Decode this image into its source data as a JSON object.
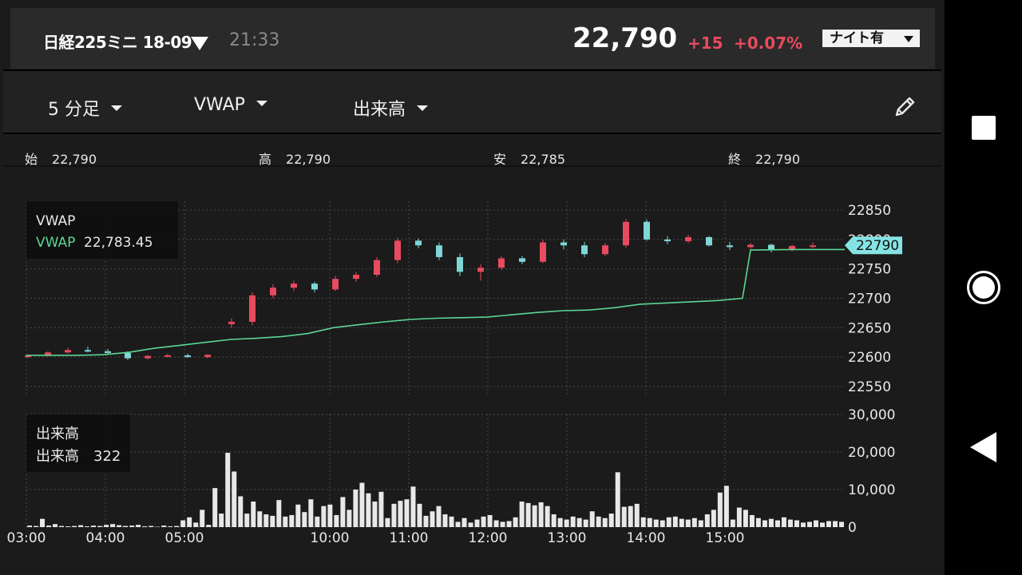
{
  "header": {
    "symbol": "日経225ミニ 18-09",
    "time": "21:33",
    "price": "22,790",
    "change": "+15",
    "change_pct": "+0.07%",
    "session_toggle": "ナイト有"
  },
  "toolbar": {
    "interval": "5 分足",
    "indicator": "VWAP",
    "sub_indicator": "出来高",
    "edit_icon": "pencil-icon"
  },
  "ohlc": {
    "open_label": "始",
    "open": "22,790",
    "high_label": "高",
    "high": "22,790",
    "low_label": "安",
    "low": "22,785",
    "close_label": "終",
    "close": "22,790"
  },
  "legend": {
    "main_title": "VWAP",
    "main_series": "VWAP",
    "main_value": "22,783.45",
    "vol_title": "出来高",
    "vol_series": "出来高",
    "vol_value": "322"
  },
  "colors": {
    "up": "#e84a5f",
    "down": "#7fd6d6",
    "vwap": "#5cd694",
    "price_tag": "#86e3e3",
    "volume": "#e8e8e8"
  },
  "chart_data": [
    {
      "type": "candlestick",
      "title": "",
      "x_ticks": [
        "03:00",
        "04:00",
        "05:00",
        "10:00",
        "11:00",
        "12:00",
        "13:00",
        "14:00",
        "15:00"
      ],
      "y_ticks": [
        22850,
        22800,
        22750,
        22700,
        22650,
        22600,
        22550
      ],
      "ylim": [
        22535,
        22865
      ],
      "last_price_label": "22790",
      "grid": true,
      "series": [
        {
          "name": "VWAP",
          "type": "line",
          "values": [
            22603,
            22603,
            22603,
            22604,
            22608,
            22615,
            22620,
            22625,
            22630,
            22632,
            22635,
            22640,
            22650,
            22655,
            22660,
            22664,
            22666,
            22667,
            22668,
            22672,
            22676,
            22679,
            22680,
            22684,
            22690,
            22692,
            22694,
            22696,
            22700,
            22782,
            22783,
            22783,
            22783
          ]
        }
      ],
      "candles": [
        {
          "o": 22600,
          "h": 22604,
          "l": 22598,
          "c": 22603
        },
        {
          "o": 22603,
          "h": 22610,
          "l": 22601,
          "c": 22608
        },
        {
          "o": 22608,
          "h": 22616,
          "l": 22606,
          "c": 22612
        },
        {
          "o": 22612,
          "h": 22618,
          "l": 22608,
          "c": 22610
        },
        {
          "o": 22610,
          "h": 22614,
          "l": 22606,
          "c": 22607
        },
        {
          "o": 22607,
          "h": 22610,
          "l": 22595,
          "c": 22598
        },
        {
          "o": 22598,
          "h": 22604,
          "l": 22596,
          "c": 22602
        },
        {
          "o": 22602,
          "h": 22606,
          "l": 22600,
          "c": 22603
        },
        {
          "o": 22603,
          "h": 22606,
          "l": 22599,
          "c": 22600
        },
        {
          "o": 22600,
          "h": 22605,
          "l": 22598,
          "c": 22604
        },
        {
          "o": 22656,
          "h": 22666,
          "l": 22650,
          "c": 22660
        },
        {
          "o": 22660,
          "h": 22710,
          "l": 22654,
          "c": 22705
        },
        {
          "o": 22705,
          "h": 22724,
          "l": 22700,
          "c": 22718
        },
        {
          "o": 22718,
          "h": 22730,
          "l": 22712,
          "c": 22725
        },
        {
          "o": 22725,
          "h": 22728,
          "l": 22710,
          "c": 22715
        },
        {
          "o": 22715,
          "h": 22738,
          "l": 22712,
          "c": 22733
        },
        {
          "o": 22733,
          "h": 22745,
          "l": 22728,
          "c": 22740
        },
        {
          "o": 22740,
          "h": 22770,
          "l": 22736,
          "c": 22765
        },
        {
          "o": 22765,
          "h": 22803,
          "l": 22760,
          "c": 22798
        },
        {
          "o": 22798,
          "h": 22802,
          "l": 22785,
          "c": 22790
        },
        {
          "o": 22790,
          "h": 22795,
          "l": 22765,
          "c": 22770
        },
        {
          "o": 22770,
          "h": 22776,
          "l": 22738,
          "c": 22745
        },
        {
          "o": 22745,
          "h": 22758,
          "l": 22730,
          "c": 22752
        },
        {
          "o": 22752,
          "h": 22772,
          "l": 22748,
          "c": 22768
        },
        {
          "o": 22768,
          "h": 22772,
          "l": 22758,
          "c": 22762
        },
        {
          "o": 22762,
          "h": 22800,
          "l": 22760,
          "c": 22795
        },
        {
          "o": 22795,
          "h": 22800,
          "l": 22783,
          "c": 22790
        },
        {
          "o": 22790,
          "h": 22796,
          "l": 22770,
          "c": 22775
        },
        {
          "o": 22775,
          "h": 22794,
          "l": 22772,
          "c": 22790
        },
        {
          "o": 22790,
          "h": 22835,
          "l": 22786,
          "c": 22830
        },
        {
          "o": 22830,
          "h": 22834,
          "l": 22798,
          "c": 22800
        },
        {
          "o": 22800,
          "h": 22806,
          "l": 22792,
          "c": 22797
        },
        {
          "o": 22797,
          "h": 22808,
          "l": 22794,
          "c": 22804
        },
        {
          "o": 22804,
          "h": 22806,
          "l": 22788,
          "c": 22790
        },
        {
          "o": 22790,
          "h": 22796,
          "l": 22782,
          "c": 22787
        },
        {
          "o": 22787,
          "h": 22794,
          "l": 22784,
          "c": 22791
        },
        {
          "o": 22791,
          "h": 22793,
          "l": 22778,
          "c": 22782
        },
        {
          "o": 22782,
          "h": 22791,
          "l": 22780,
          "c": 22789
        },
        {
          "o": 22789,
          "h": 22795,
          "l": 22785,
          "c": 22790
        }
      ]
    },
    {
      "type": "bar",
      "title": "",
      "x_ticks": [
        "03:00",
        "04:00",
        "05:00",
        "10:00",
        "11:00",
        "12:00",
        "13:00",
        "14:00",
        "15:00"
      ],
      "y_ticks": [
        30000,
        20000,
        10000,
        0
      ],
      "ylim": [
        0,
        30000
      ],
      "values": [
        400,
        300,
        2200,
        400,
        800,
        300,
        200,
        300,
        500,
        200,
        400,
        300,
        600,
        800,
        500,
        300,
        400,
        600,
        200,
        300,
        100,
        400,
        200,
        300,
        1800,
        2600,
        1200,
        4600,
        600,
        10400,
        3600,
        19800,
        14800,
        8200,
        3600,
        6800,
        4200,
        3400,
        3000,
        7200,
        2800,
        3200,
        6000,
        4000,
        7400,
        2800,
        5600,
        6000,
        3200,
        8000,
        4600,
        10000,
        11800,
        9000,
        6800,
        9400,
        2400,
        6200,
        7000,
        7400,
        10800,
        6200,
        3000,
        4200,
        5600,
        3400,
        2800,
        1400,
        2400,
        1200,
        2000,
        2800,
        3200,
        1800,
        1400,
        1600,
        2600,
        6800,
        6400,
        5800,
        6600,
        5600,
        3400,
        2400,
        2000,
        2800,
        2400,
        2000,
        4200,
        2800,
        2400,
        3600,
        14600,
        5400,
        5600,
        6200,
        2600,
        2400,
        2000,
        1800,
        2600,
        2800,
        2200,
        2000,
        2400,
        1800,
        3400,
        4600,
        9200,
        11000,
        2000,
        5200,
        4600,
        3200,
        2400,
        1800,
        2200,
        1800,
        2600,
        2000,
        1800,
        1200,
        1400,
        1800,
        1200,
        1600,
        1600,
        1400
      ]
    }
  ]
}
